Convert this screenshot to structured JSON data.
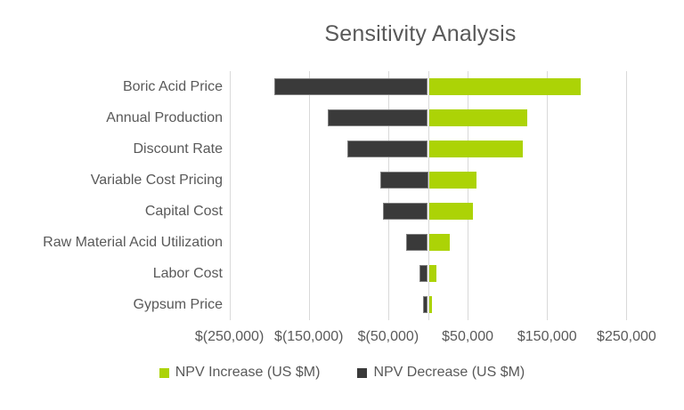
{
  "chart_data": {
    "type": "bar",
    "orientation": "horizontal",
    "title": "Sensitivity Analysis",
    "categories": [
      "Boric Acid Price",
      "Annual Production",
      "Discount Rate",
      "Variable Cost Pricing",
      "Capital Cost",
      "Raw Material Acid Utilization",
      "Labor Cost",
      "Gypsum Price"
    ],
    "series": [
      {
        "name": "NPV Increase (US $M)",
        "role": "increase",
        "color": "#acd306",
        "values": [
          192000,
          125000,
          119000,
          61000,
          57000,
          27000,
          11000,
          5000
        ]
      },
      {
        "name": "NPV Decrease (US $M)",
        "role": "decrease",
        "color": "#3a3a3a",
        "values": [
          -193000,
          -126000,
          -101000,
          -60000,
          -57000,
          -27000,
          -11000,
          -6000
        ]
      }
    ],
    "x_ticks": [
      {
        "value": -250000,
        "label": "$(250,000)"
      },
      {
        "value": -150000,
        "label": "$(150,000)"
      },
      {
        "value": -50000,
        "label": "$(50,000)"
      },
      {
        "value": 50000,
        "label": "$50,000"
      },
      {
        "value": 150000,
        "label": "$150,000"
      },
      {
        "value": 250000,
        "label": "$250,000"
      }
    ],
    "xlim": [
      -300000,
      300000
    ],
    "grid": "vertical-only",
    "zero_axis_line": true,
    "legend_position": "bottom",
    "colors": {
      "text": "#595959",
      "gridline": "#d9d9d9",
      "background": "#ffffff"
    }
  }
}
